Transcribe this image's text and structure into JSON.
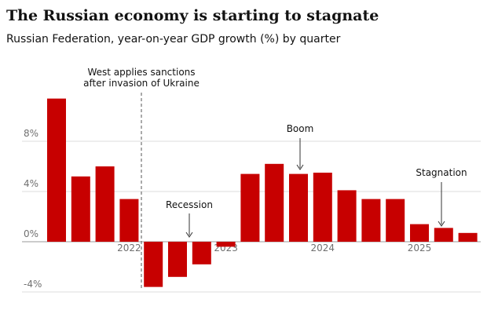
{
  "chart_data": {
    "type": "bar",
    "title": "The Russian economy is starting to stagnate",
    "subtitle": "Russian Federation, year-on-year GDP growth (%) by quarter",
    "categories": [
      null,
      null,
      null,
      "2022",
      null,
      null,
      null,
      "2023",
      null,
      null,
      null,
      "2024",
      null,
      null,
      null,
      "2025",
      null,
      null
    ],
    "values": [
      11.4,
      5.2,
      6.0,
      3.4,
      -3.6,
      -2.8,
      -1.8,
      -0.4,
      5.4,
      6.2,
      5.4,
      5.5,
      4.1,
      3.4,
      3.4,
      1.4,
      1.1,
      0.7
    ],
    "color": "#c70000",
    "ylim": [
      -4,
      12
    ],
    "yticks": [
      {
        "value": -4,
        "label": "-4%"
      },
      {
        "value": 0,
        "label": "0%"
      },
      {
        "value": 4,
        "label": "4%"
      },
      {
        "value": 8,
        "label": "8%"
      }
    ],
    "grid": true,
    "annotations": [
      "West applies sanctions",
      "after invasion of Ukraine",
      "Recession",
      "Boom",
      "Stagnation"
    ]
  }
}
